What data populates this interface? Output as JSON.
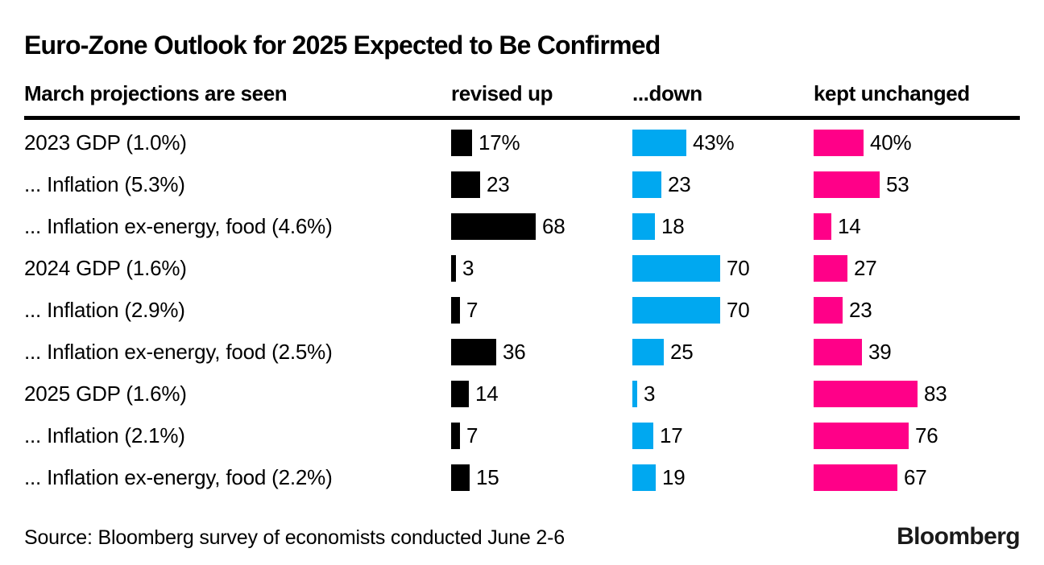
{
  "title": "Euro-Zone Outlook for 2025 Expected to Be Confirmed",
  "header": {
    "label_column": "March projections are seen",
    "columns": [
      "revised up",
      "...down",
      "kept unchanged"
    ]
  },
  "colors": {
    "revised_up": "#000000",
    "down": "#00A8F0",
    "kept_unchanged": "#FF0088"
  },
  "chart_data": {
    "type": "bar",
    "orientation": "horizontal",
    "title": "Euro-Zone Outlook for 2025 Expected to Be Confirmed",
    "categories": [
      "2023 GDP (1.0%)",
      "... Inflation (5.3%)",
      "... Inflation ex-energy, food (4.6%)",
      "2024 GDP (1.6%)",
      "... Inflation (2.9%)",
      "... Inflation ex-energy, food (2.5%)",
      "2025 GDP (1.6%)",
      "... Inflation (2.1%)",
      "... Inflation ex-energy, food (2.2%)"
    ],
    "series": [
      {
        "name": "revised up",
        "color": "#000000",
        "values": [
          17,
          23,
          68,
          3,
          7,
          36,
          14,
          7,
          15
        ]
      },
      {
        "name": "...down",
        "color": "#00A8F0",
        "values": [
          43,
          23,
          18,
          70,
          70,
          25,
          3,
          17,
          19
        ]
      },
      {
        "name": "kept unchanged",
        "color": "#FF0088",
        "values": [
          40,
          53,
          14,
          27,
          23,
          39,
          83,
          76,
          67
        ]
      }
    ],
    "unit": "%",
    "first_row_shows_percent_suffix": true,
    "xlim": [
      0,
      100
    ],
    "grid": false,
    "legend_position": "column-headers"
  },
  "footer": {
    "source": "Source: Bloomberg survey of economists conducted June 2-6",
    "logo": "Bloomberg"
  }
}
